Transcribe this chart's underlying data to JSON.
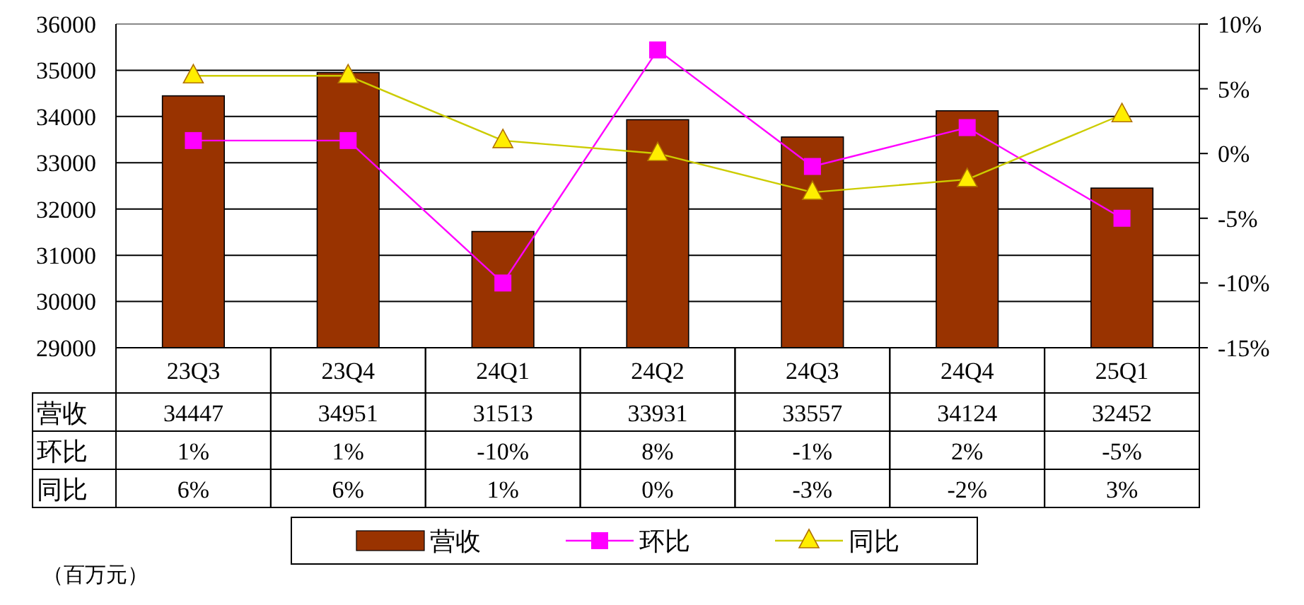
{
  "chart_data": {
    "type": "bar",
    "categories": [
      "23Q3",
      "23Q4",
      "24Q1",
      "24Q2",
      "24Q3",
      "24Q4",
      "25Q1"
    ],
    "ylim": [
      29000,
      36000
    ],
    "yticks": [
      29000,
      30000,
      31000,
      32000,
      33000,
      34000,
      35000,
      36000
    ],
    "y2lim": [
      -15,
      10
    ],
    "y2ticks": [
      {
        "value": -15,
        "label": "-15%"
      },
      {
        "value": -10,
        "label": "-10%"
      },
      {
        "value": -5,
        "label": "-5%"
      },
      {
        "value": 0,
        "label": "0%"
      },
      {
        "value": 5,
        "label": "5%"
      },
      {
        "value": 10,
        "label": "10%"
      }
    ],
    "grid": "y",
    "legend": "bottom",
    "annotations": [
      "（百万元）"
    ],
    "series": [
      {
        "name": "营收",
        "color": "#993300",
        "values": [
          34447,
          34951,
          31513,
          33931,
          33557,
          34124,
          32452
        ],
        "value_labels": [
          "34447",
          "34951",
          "31513",
          "33931",
          "33557",
          "34124",
          "32452"
        ]
      },
      {
        "name": "环比",
        "type": "line",
        "axis": "y2",
        "color": "#ff00ff",
        "marker": "square",
        "values": [
          1,
          1,
          -10,
          8,
          -1,
          2,
          -5
        ],
        "value_labels": [
          "1%",
          "1%",
          "-10%",
          "8%",
          "-1%",
          "2%",
          "-5%"
        ]
      },
      {
        "name": "同比",
        "type": "line",
        "axis": "y2",
        "color": "#cccc00",
        "marker": "triangle",
        "values": [
          6,
          6,
          1,
          0,
          -3,
          -2,
          3
        ],
        "value_labels": [
          "6%",
          "6%",
          "1%",
          "0%",
          "-3%",
          "-2%",
          "3%"
        ]
      }
    ]
  }
}
